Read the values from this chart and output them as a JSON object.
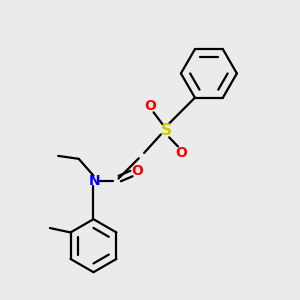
{
  "bg_color": "#ebebeb",
  "bond_color": "#000000",
  "N_color": "#0000ff",
  "O_color": "#ff0000",
  "S_color": "#cccc00",
  "line_width": 1.6,
  "figsize": [
    3.0,
    3.0
  ],
  "dpi": 100,
  "xlim": [
    0,
    10
  ],
  "ylim": [
    0,
    10
  ]
}
